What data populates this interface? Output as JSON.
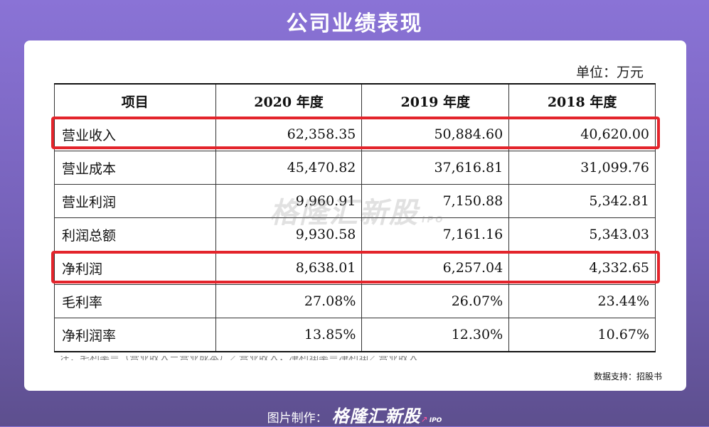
{
  "title": "公司业绩表现",
  "unit": "单位：万元",
  "table": {
    "headers": [
      "项目",
      "2020 年度",
      "2019 年度",
      "2018 年度"
    ],
    "rows": [
      {
        "label": "营业收入",
        "values": [
          "62,358.35",
          "50,884.60",
          "40,620.00"
        ]
      },
      {
        "label": "营业成本",
        "values": [
          "45,470.82",
          "37,616.81",
          "31,099.76"
        ]
      },
      {
        "label": "营业利润",
        "values": [
          "9,960.91",
          "7,150.88",
          "5,342.81"
        ]
      },
      {
        "label": "利润总额",
        "values": [
          "9,930.58",
          "7,161.16",
          "5,343.03"
        ]
      },
      {
        "label": "净利润",
        "values": [
          "8,638.01",
          "6,257.04",
          "4,332.65"
        ]
      },
      {
        "label": "毛利率",
        "values": [
          "27.08%",
          "26.07%",
          "23.44%"
        ]
      },
      {
        "label": "净利润率",
        "values": [
          "13.85%",
          "12.30%",
          "10.67%"
        ]
      }
    ]
  },
  "highlight_color": "#e3242b",
  "watermark": {
    "text": "格隆汇新股",
    "sub": "IPO"
  },
  "cut_note": "注：毛利率＝（营业收入－营业成本）／营业收入；净利润率＝净利润／营业收入",
  "source": "数据支持：招股书",
  "footer": {
    "label": "图片制作：",
    "logo": "格隆汇新股",
    "logo_sub": "IPO",
    "logo_arrow": "↗"
  }
}
